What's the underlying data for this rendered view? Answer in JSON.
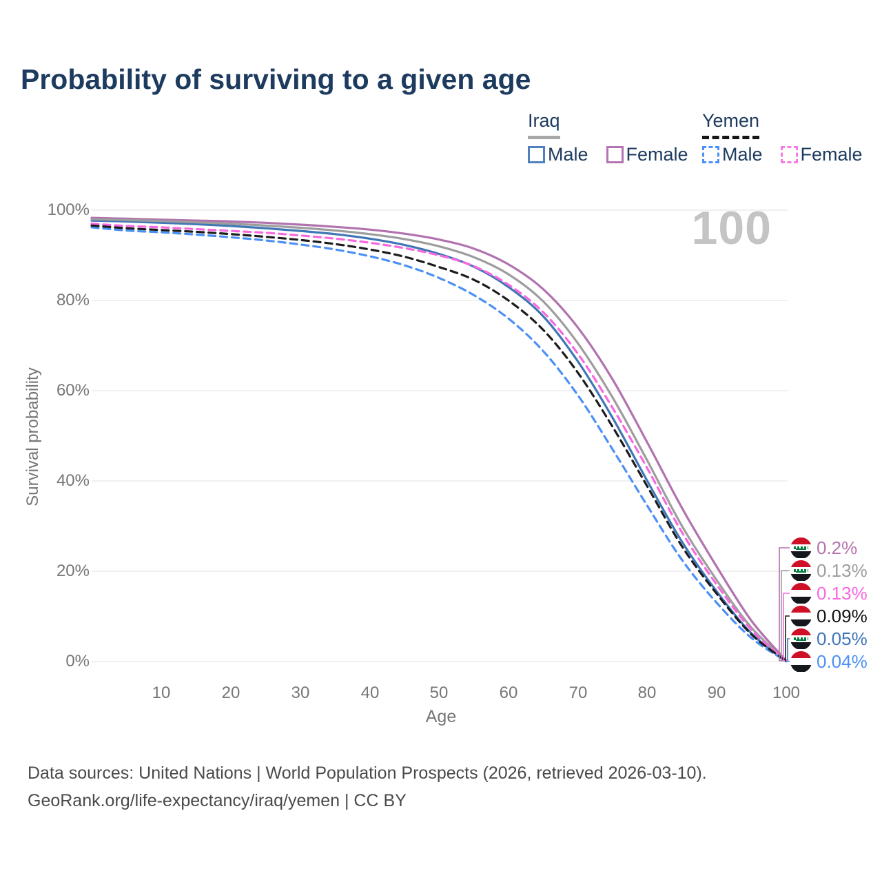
{
  "title": "Probability of surviving to a given age",
  "watermark_age": "100",
  "legend": {
    "groups": [
      {
        "country": "Iraq",
        "line_style": "solid",
        "underline_color": "#a8a8a8",
        "items": [
          {
            "label": "Male",
            "color": "#4e81bd"
          },
          {
            "label": "Female",
            "color": "#b473b4"
          }
        ]
      },
      {
        "country": "Yemen",
        "line_style": "dashed",
        "underline_color": "#161616",
        "items": [
          {
            "label": "Male",
            "color": "#4b90f5"
          },
          {
            "label": "Female",
            "color": "#f87ae6"
          }
        ]
      }
    ]
  },
  "chart_data": {
    "type": "line",
    "title": "Probability of surviving to a given age",
    "xlabel": "Age",
    "ylabel": "Survival probability",
    "xlim": [
      0,
      100
    ],
    "ylim": [
      0,
      100
    ],
    "grid": "horizontal",
    "x_tick_labels": [
      "10",
      "20",
      "30",
      "40",
      "50",
      "60",
      "70",
      "80",
      "90",
      "100"
    ],
    "y_tick_labels_top_to_bottom": [
      "100%",
      "80%",
      "60%",
      "40%",
      "20%",
      "0%"
    ],
    "y_tick_values": [
      0,
      20,
      40,
      60,
      80,
      100
    ],
    "x": [
      0,
      5,
      10,
      15,
      20,
      25,
      30,
      35,
      40,
      45,
      50,
      55,
      60,
      65,
      70,
      75,
      80,
      85,
      90,
      95,
      100
    ],
    "series": [
      {
        "name": "Iraq Male",
        "country": "Iraq",
        "sex": "Male",
        "color": "#3f76b6",
        "dashed": false,
        "values": [
          97.7,
          97.5,
          97.2,
          96.9,
          96.5,
          96.0,
          95.4,
          94.7,
          93.7,
          92.3,
          90.3,
          87.5,
          83.0,
          76.5,
          66.5,
          54.0,
          40.0,
          26.5,
          15.5,
          6.2,
          0.05
        ]
      },
      {
        "name": "Iraq Female",
        "country": "Iraq",
        "sex": "Female",
        "color": "#b172ae",
        "dashed": false,
        "values": [
          98.3,
          98.1,
          97.9,
          97.7,
          97.5,
          97.2,
          96.8,
          96.3,
          95.7,
          94.8,
          93.5,
          91.5,
          88.0,
          82.5,
          74.0,
          62.5,
          48.5,
          34.0,
          21.0,
          9.0,
          0.2
        ]
      },
      {
        "name": "Iraq Both sexes",
        "country": "Iraq",
        "sex": "Both",
        "color": "#9d9d9d",
        "dashed": false,
        "values": [
          98.0,
          97.8,
          97.6,
          97.3,
          97.0,
          96.6,
          96.1,
          95.5,
          94.7,
          93.6,
          92.0,
          89.6,
          85.8,
          79.8,
          70.5,
          58.5,
          44.5,
          30.0,
          18.0,
          7.5,
          0.13
        ]
      },
      {
        "name": "Yemen Male",
        "country": "Yemen",
        "sex": "Male",
        "color": "#4b90f5",
        "dashed": true,
        "values": [
          96.2,
          95.5,
          95.1,
          94.6,
          94.0,
          93.3,
          92.4,
          91.3,
          89.8,
          87.8,
          85.0,
          81.2,
          76.0,
          68.8,
          59.0,
          47.0,
          34.5,
          22.5,
          13.0,
          5.2,
          0.04
        ]
      },
      {
        "name": "Yemen Female",
        "country": "Yemen",
        "sex": "Female",
        "color": "#f868df",
        "dashed": true,
        "values": [
          97.0,
          96.5,
          96.2,
          95.8,
          95.4,
          95.0,
          94.4,
          93.7,
          92.8,
          91.6,
          90.0,
          87.6,
          83.5,
          77.4,
          68.2,
          56.2,
          42.8,
          28.6,
          17.0,
          7.0,
          0.13
        ]
      },
      {
        "name": "Yemen Both sexes",
        "country": "Yemen",
        "sex": "Both",
        "color": "#1c1c1c",
        "dashed": true,
        "values": [
          96.6,
          96.0,
          95.6,
          95.2,
          94.7,
          94.1,
          93.4,
          92.5,
          91.3,
          89.7,
          87.4,
          84.6,
          80.0,
          73.5,
          64.0,
          52.0,
          38.8,
          25.5,
          15.0,
          6.0,
          0.09
        ]
      }
    ],
    "end_labels": [
      {
        "flag": "iraq",
        "series": "Iraq Female",
        "series_index": 1,
        "value": "0.2%",
        "color": "#b473ae"
      },
      {
        "flag": "iraq",
        "series": "Iraq Both sexes",
        "series_index": 2,
        "value": "0.13%",
        "color": "#9d9d9d"
      },
      {
        "flag": "yemen",
        "series": "Yemen Female",
        "series_index": 4,
        "value": "0.13%",
        "color": "#f868df"
      },
      {
        "flag": "yemen",
        "series": "Yemen Both sexes",
        "series_index": 5,
        "value": "0.09%",
        "color": "#111111"
      },
      {
        "flag": "iraq",
        "series": "Iraq Male",
        "series_index": 0,
        "value": "0.05%",
        "color": "#3f76b6"
      },
      {
        "flag": "yemen",
        "series": "Yemen Male",
        "series_index": 3,
        "value": "0.04%",
        "color": "#4b90f5"
      }
    ]
  },
  "footer": {
    "line1": "Data sources: United Nations | World Population Prospects (2026, retrieved 2026-03-10).",
    "line2": "GeoRank.org/life-expectancy/iraq/yemen | CC BY"
  },
  "colors": {
    "title": "#1d3b5e",
    "axis_text": "#767676",
    "grid": "#ebebeb",
    "watermark": "#c4c4c4",
    "footer_text": "#4a4a4a"
  }
}
